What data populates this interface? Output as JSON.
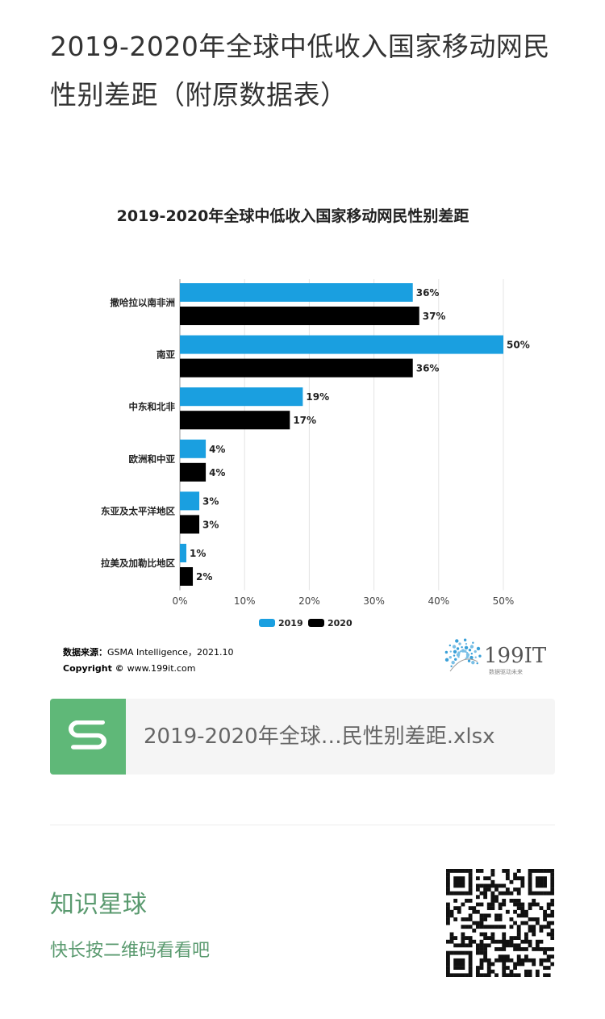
{
  "page": {
    "title": "2019-2020年全球中低收入国家移动网民性别差距（附原数据表）"
  },
  "chart_data": {
    "type": "bar",
    "orientation": "horizontal",
    "title": "2019-2020年全球中低收入国家移动网民性别差距",
    "categories": [
      "撒哈拉以南非洲",
      "南亚",
      "中东和北非",
      "欧洲和中亚",
      "东亚及太平洋地区",
      "拉美及加勒比地区"
    ],
    "series": [
      {
        "name": "2019",
        "color": "#1a9fe0",
        "values": [
          36,
          50,
          19,
          4,
          3,
          1
        ],
        "labels": [
          "36%",
          "50%",
          "19%",
          "4%",
          "3%",
          "1%"
        ]
      },
      {
        "name": "2020",
        "color": "#000000",
        "values": [
          37,
          36,
          17,
          4,
          3,
          2
        ],
        "labels": [
          "37%",
          "36%",
          "17%",
          "4%",
          "3%",
          "2%"
        ]
      }
    ],
    "xlim": [
      0,
      50
    ],
    "xticks": [
      "0%",
      "10%",
      "20%",
      "30%",
      "40%",
      "50%"
    ],
    "legend_position": "bottom-center",
    "source_label": "数据来源：",
    "source_text": "GSMA Intelligence，2021.10",
    "copyright_label": "Copyright ©",
    "copyright_text": "www.199it.com",
    "logo_text": "199IT",
    "logo_slogan": "数据驱动未来"
  },
  "file": {
    "name": "2019-2020年全球…民性别差距.xlsx",
    "icon": "spreadsheet-s-icon"
  },
  "footer": {
    "title": "知识星球",
    "subtitle": "快长按二维码看看吧"
  },
  "colors": {
    "accent_green": "#5fb878",
    "footer_text": "#5a9a6f",
    "bar_2019": "#1a9fe0",
    "bar_2020": "#000000"
  }
}
